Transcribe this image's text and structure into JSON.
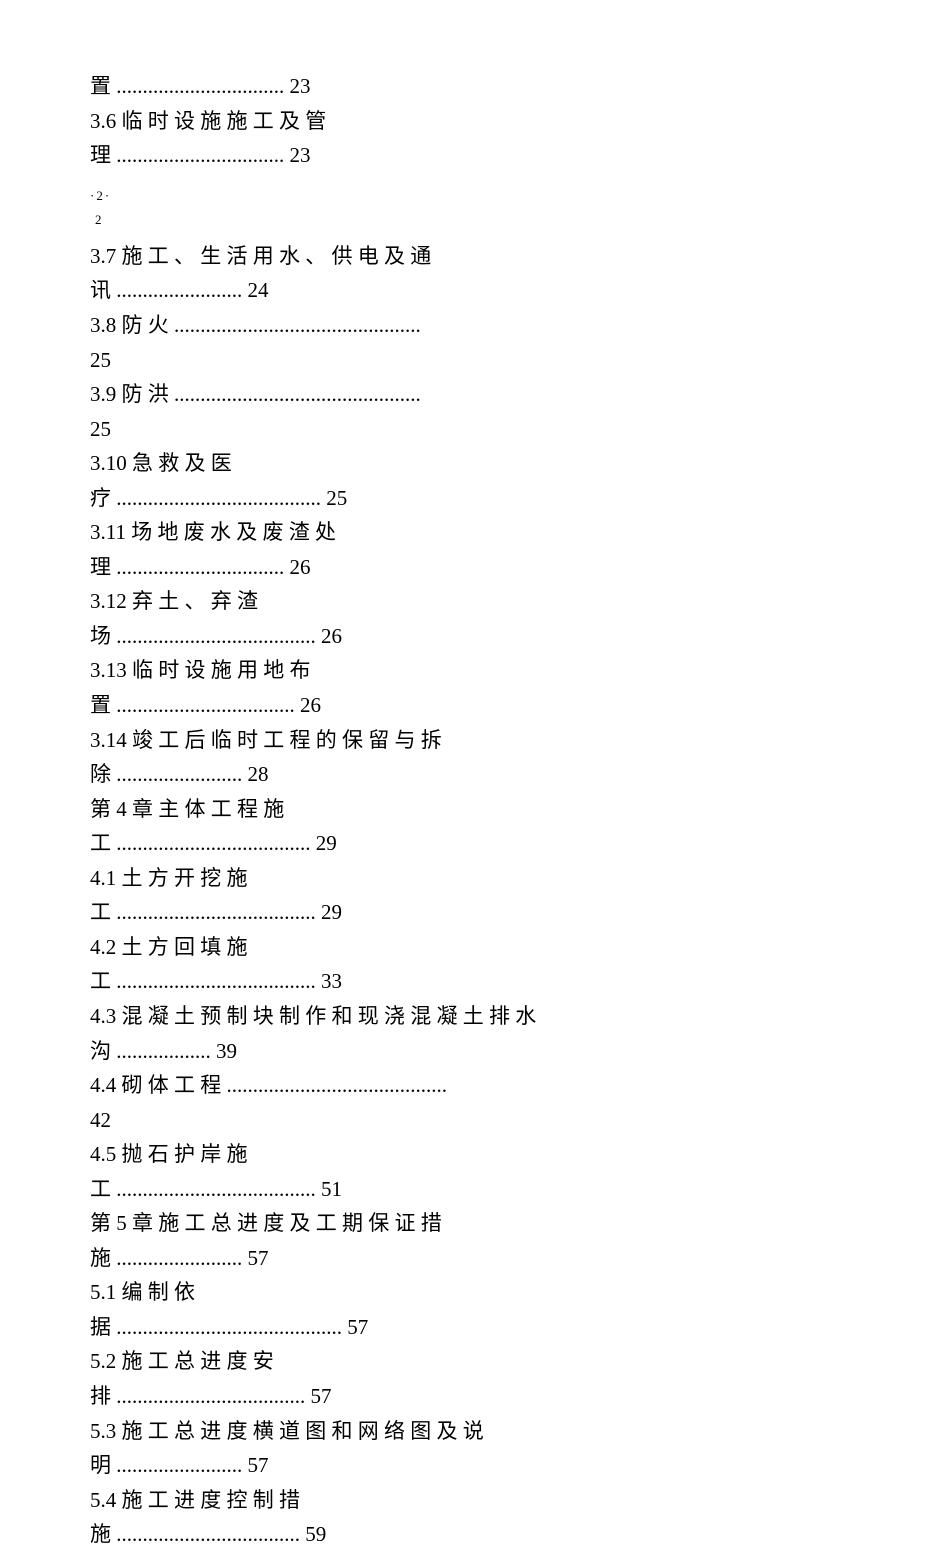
{
  "lines": [
    {
      "text": "置 ................................ 23"
    },
    {
      "text": "3.6 临 时 设 施 施 工 及 管"
    },
    {
      "text": "理 ................................ 23"
    },
    {
      "type": "marker",
      "text": "·2·"
    },
    {
      "type": "marker-sub",
      "text": "2"
    },
    {
      "text": "3.7 施 工 、 生 活 用 水 、 供 电 及 通"
    },
    {
      "text": "讯 ........................ 24"
    },
    {
      "text": "3.8 防 火 ..............................................."
    },
    {
      "text": "25"
    },
    {
      "text": "3.9 防 洪 ..............................................."
    },
    {
      "text": "25"
    },
    {
      "text": "3.10  急 救 及 医"
    },
    {
      "text": "疗 ....................................... 25"
    },
    {
      "text": "3.11  场 地 废 水 及 废 渣 处"
    },
    {
      "text": "理 ................................ 26"
    },
    {
      "text": "3.12  弃 土 、 弃 渣"
    },
    {
      "text": "场 ...................................... 26"
    },
    {
      "text": "3.13  临 时 设 施 用 地 布"
    },
    {
      "text": "置 .................................. 26"
    },
    {
      "text": "3.14  竣 工 后 临 时 工 程 的 保 留 与 拆"
    },
    {
      "text": "除 ........................ 28"
    },
    {
      "text": "第 4 章  主 体 工 程 施"
    },
    {
      "text": "工 ..................................... 29"
    },
    {
      "text": "4.1 土 方 开 挖 施"
    },
    {
      "text": "工 ...................................... 29"
    },
    {
      "text": "4.2 土 方 回 填 施"
    },
    {
      "text": "工 ...................................... 33"
    },
    {
      "text": "4.3 混 凝 土 预 制 块 制 作 和 现 浇 混 凝 土 排 水"
    },
    {
      "text": "沟 .................. 39"
    },
    {
      "text": "4.4 砌 体 工 程 .........................................."
    },
    {
      "text": "42"
    },
    {
      "text": "4.5 抛 石 护 岸 施"
    },
    {
      "text": "工 ...................................... 51"
    },
    {
      "text": "第 5 章  施 工 总 进 度 及 工 期 保 证 措"
    },
    {
      "text": "施 ........................ 57"
    },
    {
      "text": "5.1 编 制 依"
    },
    {
      "text": "据 ........................................... 57"
    },
    {
      "text": "5.2 施 工 总 进 度 安"
    },
    {
      "text": "排 .................................... 57"
    },
    {
      "text": "5.3 施 工 总 进 度 横 道 图 和 网 络 图 及 说"
    },
    {
      "text": "明 ........................ 57"
    },
    {
      "text": "5.4 施 工 进 度 控 制 措"
    },
    {
      "text": "施 ................................... 59"
    }
  ]
}
